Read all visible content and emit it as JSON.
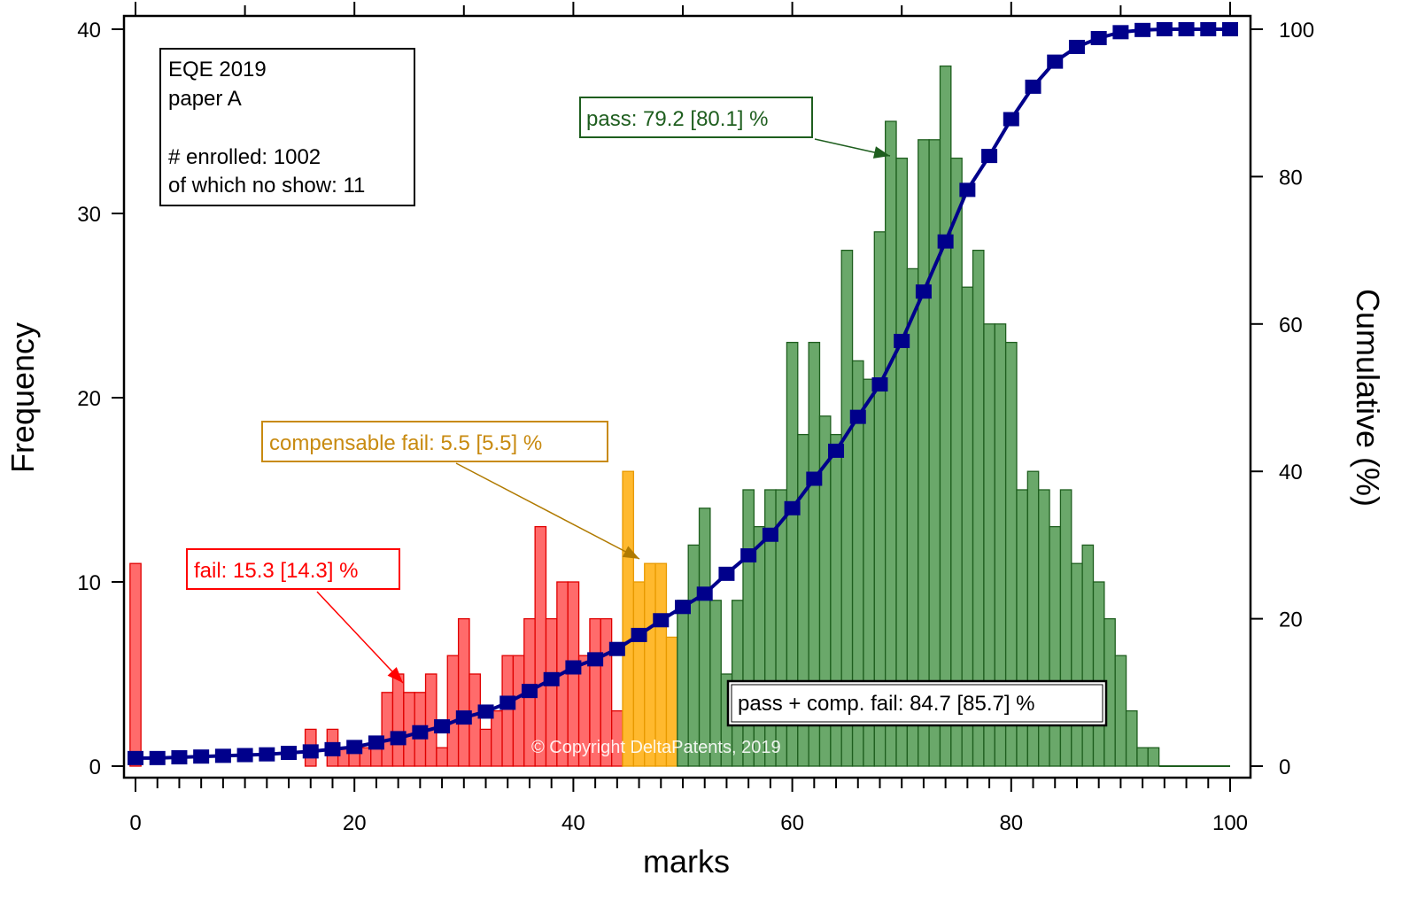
{
  "chart_data": {
    "type": "bar",
    "title": "",
    "xlabel": "marks",
    "ylabel": "Frequency",
    "y2label": "Cumulative (%)",
    "xlim": [
      -1,
      101
    ],
    "ylim": [
      0,
      40
    ],
    "y2lim": [
      0,
      100
    ],
    "x_ticks": [
      0,
      20,
      40,
      60,
      80,
      100
    ],
    "y_ticks": [
      0,
      10,
      20,
      30,
      40
    ],
    "y2_ticks": [
      0,
      20,
      40,
      60,
      80,
      100
    ],
    "bin_width": 1,
    "series": [
      {
        "name": "fail",
        "color": "#ff6b6b",
        "edge": "#e00000",
        "x": [
          0,
          16,
          18,
          19,
          20,
          21,
          22,
          23,
          24,
          25,
          26,
          27,
          28,
          29,
          30,
          31,
          32,
          33,
          34,
          35,
          36,
          37,
          38,
          39,
          40,
          41,
          42,
          43,
          44
        ],
        "values": [
          11,
          2,
          2,
          1,
          1,
          1,
          1,
          4,
          5,
          4,
          4,
          5,
          1,
          6,
          8,
          5,
          2,
          3,
          6,
          6,
          8,
          13,
          8,
          10,
          10,
          6,
          8,
          8,
          3
        ]
      },
      {
        "name": "compensable fail",
        "color": "#ffb92e",
        "edge": "#e89a00",
        "x": [
          45,
          46,
          47,
          48,
          49
        ],
        "values": [
          16,
          10,
          11,
          11,
          7
        ]
      },
      {
        "name": "pass",
        "color": "#6aa86a",
        "edge": "#1e5e1e",
        "x": [
          50,
          51,
          52,
          53,
          54,
          55,
          56,
          57,
          58,
          59,
          60,
          61,
          62,
          63,
          64,
          65,
          66,
          67,
          68,
          69,
          70,
          71,
          72,
          73,
          74,
          75,
          76,
          77,
          78,
          79,
          80,
          81,
          82,
          83,
          84,
          85,
          86,
          87,
          88,
          89,
          90,
          91,
          92,
          93
        ],
        "values": [
          9,
          12,
          14,
          9,
          5,
          9,
          15,
          13,
          15,
          15,
          23,
          18,
          23,
          19,
          18,
          28,
          22,
          21,
          29,
          35,
          33,
          27,
          34,
          34,
          38,
          33,
          26,
          28,
          24,
          24,
          23,
          15,
          16,
          15,
          13,
          15,
          11,
          12,
          10,
          8,
          6,
          3,
          1,
          1
        ]
      },
      {
        "name": "cumulative",
        "type": "line-markers",
        "axis": "y2",
        "color": "#00008b",
        "x": [
          0,
          2,
          4,
          6,
          8,
          10,
          12,
          14,
          16,
          18,
          20,
          22,
          24,
          26,
          28,
          30,
          32,
          34,
          36,
          38,
          40,
          42,
          44,
          46,
          48,
          50,
          52,
          54,
          56,
          58,
          60,
          62,
          64,
          66,
          68,
          70,
          72,
          74,
          76,
          78,
          80,
          82,
          84,
          86,
          88,
          90,
          92,
          94,
          96,
          98,
          100
        ],
        "values": [
          1.1,
          1.1,
          1.2,
          1.3,
          1.4,
          1.5,
          1.6,
          1.8,
          2.0,
          2.3,
          2.6,
          3.2,
          3.8,
          4.6,
          5.4,
          6.6,
          7.4,
          8.6,
          10.2,
          11.8,
          13.4,
          14.5,
          15.9,
          17.8,
          19.8,
          21.6,
          23.4,
          26.1,
          28.6,
          31.4,
          35.0,
          39.0,
          42.8,
          47.4,
          51.8,
          57.7,
          64.4,
          71.2,
          78.2,
          82.8,
          87.8,
          92.2,
          95.6,
          97.6,
          98.8,
          99.6,
          99.9,
          100,
          100,
          100,
          100
        ]
      }
    ],
    "annotations": {
      "info_box": [
        "EQE 2019",
        "paper A",
        "",
        "# enrolled: 1002",
        "of which no show: 11"
      ],
      "pass": "pass: 79.2 [80.1] %",
      "compensable_fail": "compensable fail: 5.5 [5.5] %",
      "fail": "fail: 15.3 [14.3] %",
      "pass_plus_comp": "pass + comp. fail: 84.7 [85.7] %",
      "copyright": "© Copyright DeltaPatents, 2019"
    }
  }
}
